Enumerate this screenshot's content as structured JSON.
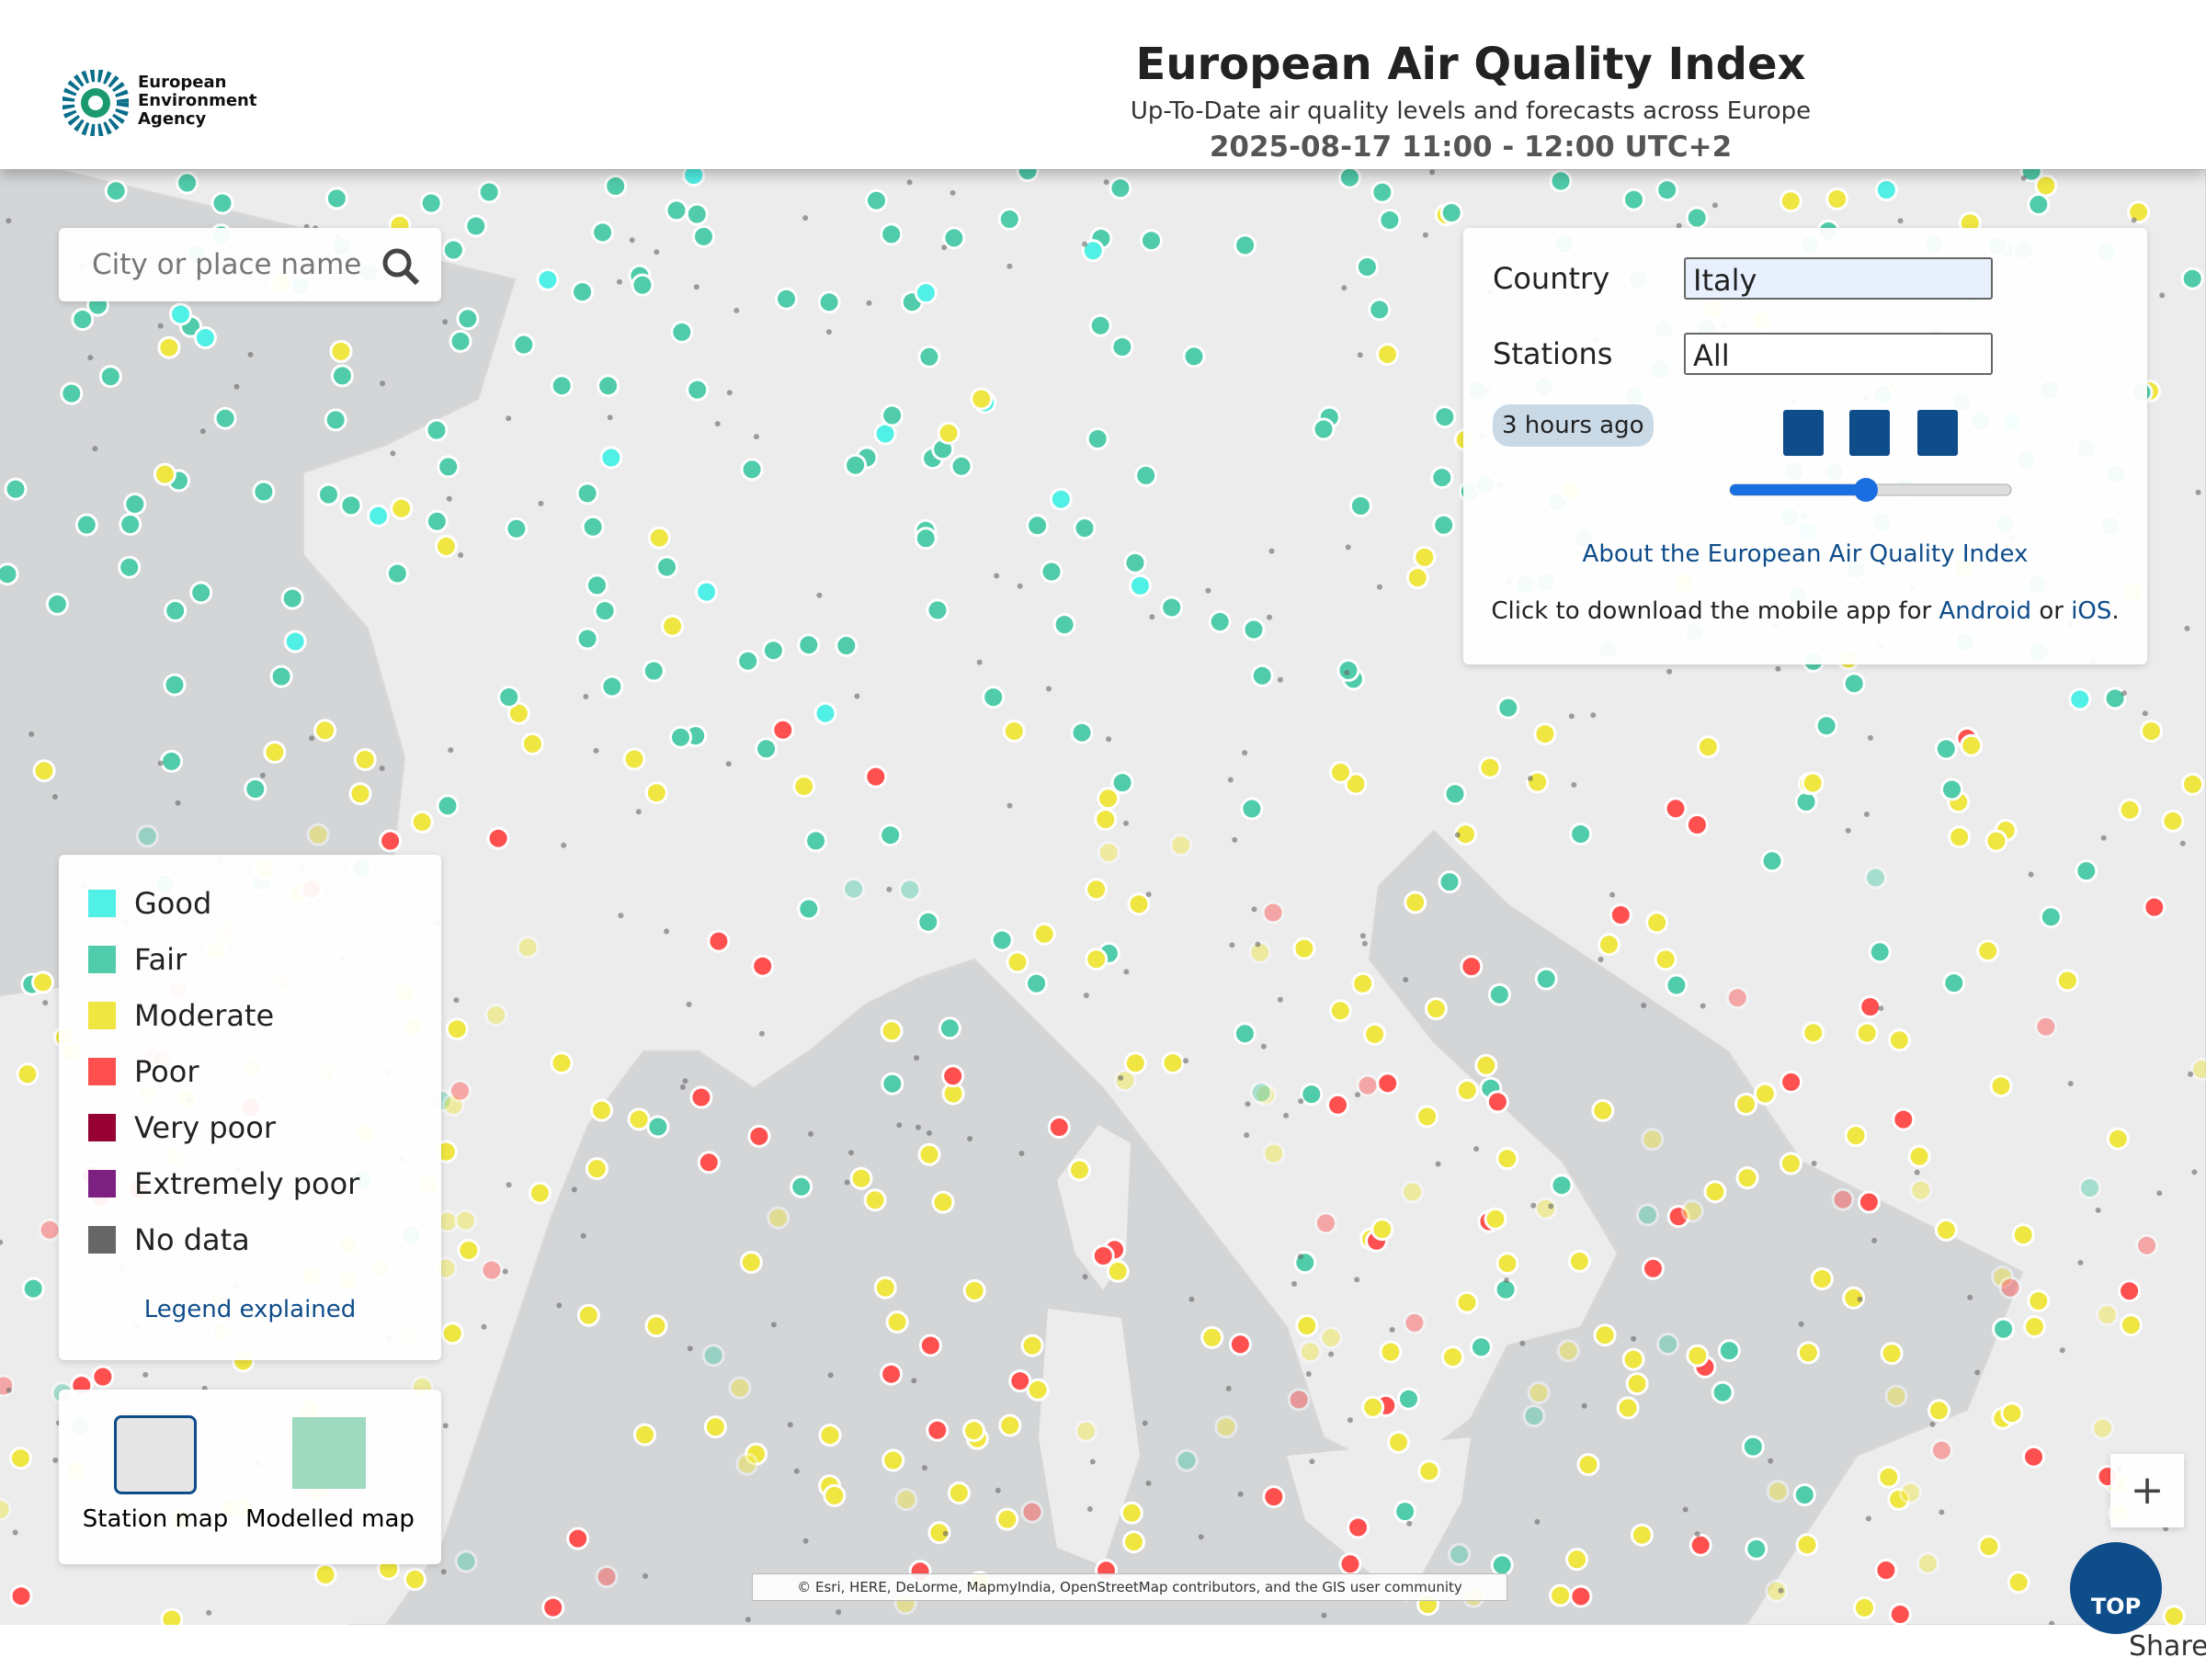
{
  "header": {
    "logo": [
      "European",
      "Environment",
      "Agency"
    ],
    "title": "European Air Quality Index",
    "subtitle": "Up-To-Date air quality levels and forecasts across Europe",
    "date": "2025-08-17 11:00 - 12:00 UTC+2"
  },
  "search": {
    "placeholder": "City or place name"
  },
  "panel": {
    "country_label": "Country",
    "country": "Italy",
    "stations_label": "Stations",
    "stations": "All",
    "time_badge": "3 hours ago",
    "about_link": "About the European Air Quality Index",
    "download": [
      "Click to download the mobile app for",
      "Android",
      "or",
      "iOS",
      "."
    ]
  },
  "legend": {
    "items": [
      {
        "label": "Good",
        "color": "#50f0e6"
      },
      {
        "label": "Fair",
        "color": "#50ccaa"
      },
      {
        "label": "Moderate",
        "color": "#f0e641"
      },
      {
        "label": "Poor",
        "color": "#ff5050"
      },
      {
        "label": "Very poor",
        "color": "#960032"
      },
      {
        "label": "Extremely poor",
        "color": "#7d2181"
      },
      {
        "label": "No data",
        "color": "#666666"
      }
    ],
    "link": "Legend explained"
  },
  "map_toggle": [
    "Station map",
    "Modelled map"
  ],
  "attribution": "© Esri, HERE, DeLorme, MapmyIndia, OpenStreetMap contributors, and the GIS user community",
  "controls": {
    "zoom_in": "+",
    "top": "TOP",
    "share": "Share"
  }
}
